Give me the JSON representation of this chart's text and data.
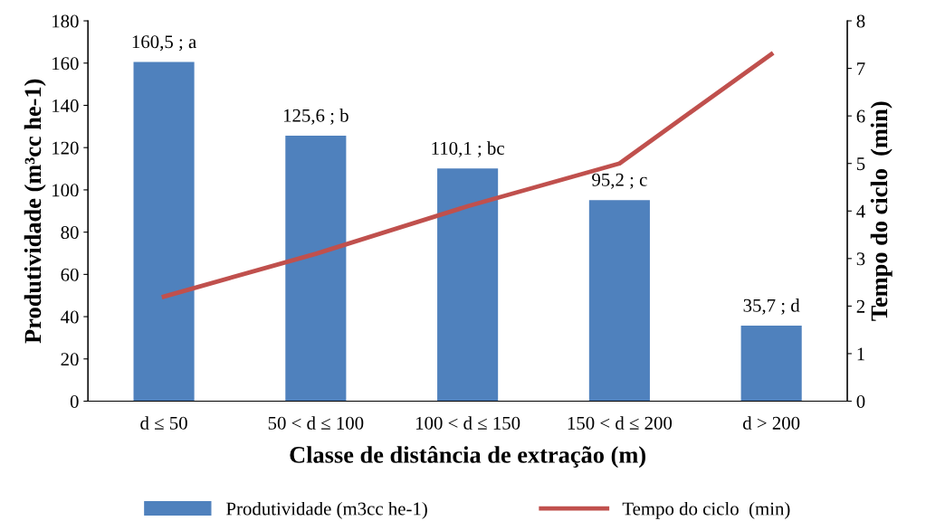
{
  "chart_data": {
    "type": "bar",
    "categories": [
      "d ≤ 50",
      "50 < d ≤ 100",
      "100 < d ≤ 150",
      "150 < d ≤ 200",
      "d > 200"
    ],
    "xlabel": "Classe de distância de extração (m)",
    "ylabel": "Produtividade (m³cc he-1)",
    "y2label": "Tempo do ciclo  (min)",
    "ylim": [
      0,
      180
    ],
    "yticks": [
      0,
      20,
      40,
      60,
      80,
      100,
      120,
      140,
      160,
      180
    ],
    "y2lim": [
      0,
      8
    ],
    "y2ticks": [
      0,
      1,
      2,
      3,
      4,
      5,
      6,
      7,
      8
    ],
    "series": [
      {
        "name": "Produtividade (m3cc he-1)",
        "color": "#4f81bd",
        "values": [
          160.5,
          125.6,
          110.1,
          95.2,
          35.7
        ],
        "value_labels": [
          "160,5 ; a",
          "125,6 ; b",
          "110,1 ; bc",
          "95,2 ; c",
          "35,7 ; d"
        ]
      },
      {
        "name": "Tempo do ciclo  (min)",
        "type": "line",
        "axis": "y2",
        "color": "#c0504d",
        "values": [
          2.2,
          3.1,
          4.1,
          5.0,
          7.3
        ]
      }
    ],
    "legend": "bottom",
    "grid": false,
    "marker": "none"
  }
}
